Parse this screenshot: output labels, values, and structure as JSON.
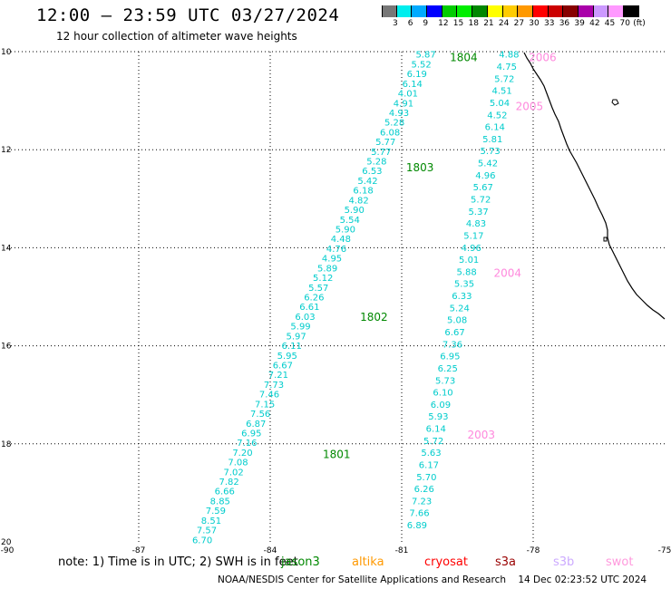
{
  "header": {
    "title": "12:00 — 23:59 UTC 03/27/2024",
    "subtitle": "12 hour collection of altimeter wave heights"
  },
  "colorbar": {
    "colors": [
      "#777777",
      "#00eeee",
      "#00aaff",
      "#0000ff",
      "#00cc00",
      "#00ee00",
      "#008800",
      "#ffff00",
      "#ffcc00",
      "#ff9900",
      "#ff0000",
      "#cc0000",
      "#880000",
      "#aa00aa",
      "#cc99ff",
      "#ff99ff",
      "#000000"
    ],
    "labels": [
      "3",
      "6",
      "9",
      "12",
      "15",
      "18",
      "21",
      "24",
      "27",
      "30",
      "33",
      "36",
      "39",
      "42",
      "45",
      "70",
      "(ft)"
    ]
  },
  "map": {
    "lon_ticks": [
      "-90",
      "-87",
      "-84",
      "-81",
      "-78",
      "-75"
    ],
    "lat_ticks": [
      "10",
      "12",
      "14",
      "16",
      "18",
      "20"
    ],
    "lon_range": [
      -90,
      -75
    ],
    "lat_range": [
      10,
      20
    ]
  },
  "tracks": [
    {
      "color": "#00cccc",
      "start": {
        "lon": -80.45,
        "lat": 10.05
      },
      "end": {
        "lon": -85.55,
        "lat": 19.95
      },
      "values": [
        "5.87",
        "5.52",
        "6.19",
        "6.14",
        "4.01",
        "4.91",
        "4.93",
        "5.28",
        "6.08",
        "5.77",
        "5.77",
        "5.28",
        "6.53",
        "5.42",
        "6.18",
        "4.82",
        "5.90",
        "5.54",
        "5.90",
        "4.48",
        "4.76",
        "4.95",
        "5.89",
        "5.12",
        "5.57",
        "6.26",
        "6.61",
        "6.03",
        "5.99",
        "5.97",
        "6.11",
        "5.95",
        "6.67",
        "7.21",
        "7.73",
        "7.46",
        "7.15",
        "7.56",
        "6.87",
        "6.95",
        "7.16",
        "7.20",
        "7.08",
        "7.02",
        "7.82",
        "6.66",
        "8.85",
        "7.59",
        "8.51",
        "7.57",
        "6.70"
      ]
    },
    {
      "color": "#00cccc",
      "start": {
        "lon": -78.55,
        "lat": 10.05
      },
      "end": {
        "lon": -80.65,
        "lat": 19.65
      },
      "values": [
        "4.88",
        "4.75",
        "5.72",
        "4.51",
        "5.04",
        "4.52",
        "6.14",
        "5.81",
        "5.73",
        "5.42",
        "4.96",
        "5.67",
        "5.72",
        "5.37",
        "4.83",
        "5.17",
        "4.96",
        "5.01",
        "5.88",
        "5.35",
        "6.33",
        "5.24",
        "5.08",
        "6.67",
        "7.36",
        "6.95",
        "6.25",
        "5.73",
        "6.10",
        "6.09",
        "5.93",
        "6.14",
        "5.72",
        "5.63",
        "6.17",
        "5.70",
        "6.26",
        "7.23",
        "7.66",
        "6.89"
      ]
    }
  ],
  "pass_labels": [
    {
      "text": "1804",
      "lon": -79.9,
      "lat": 10.1,
      "color": "#008800"
    },
    {
      "text": "1803",
      "lon": -80.9,
      "lat": 12.35,
      "color": "#008800"
    },
    {
      "text": "1802",
      "lon": -81.95,
      "lat": 15.4,
      "color": "#008800"
    },
    {
      "text": "1801",
      "lon": -82.8,
      "lat": 18.2,
      "color": "#008800"
    },
    {
      "text": "2006",
      "lon": -78.1,
      "lat": 10.1,
      "color": "#ff88dd"
    },
    {
      "text": "2005",
      "lon": -78.4,
      "lat": 11.1,
      "color": "#ff88dd"
    },
    {
      "text": "2004",
      "lon": -78.9,
      "lat": 14.5,
      "color": "#ff88dd"
    },
    {
      "text": "2003",
      "lon": -79.5,
      "lat": 17.8,
      "color": "#ff88dd"
    }
  ],
  "note": {
    "text": "note: 1) Time is in UTC; 2) SWH is in feet",
    "satellites": [
      {
        "name": "jason3",
        "color": "#008800"
      },
      {
        "name": "altika",
        "color": "#ff9900"
      },
      {
        "name": "cryosat",
        "color": "#ff0000"
      },
      {
        "name": "s3a",
        "color": "#990000"
      },
      {
        "name": "s3b",
        "color": "#ccaaff"
      },
      {
        "name": "swot",
        "color": "#ff99dd"
      }
    ]
  },
  "footer": {
    "credit": "NOAA/NESDIS Center for Satellite Applications and Research",
    "timestamp": "14 Dec 02:23:52 UTC 2024"
  }
}
